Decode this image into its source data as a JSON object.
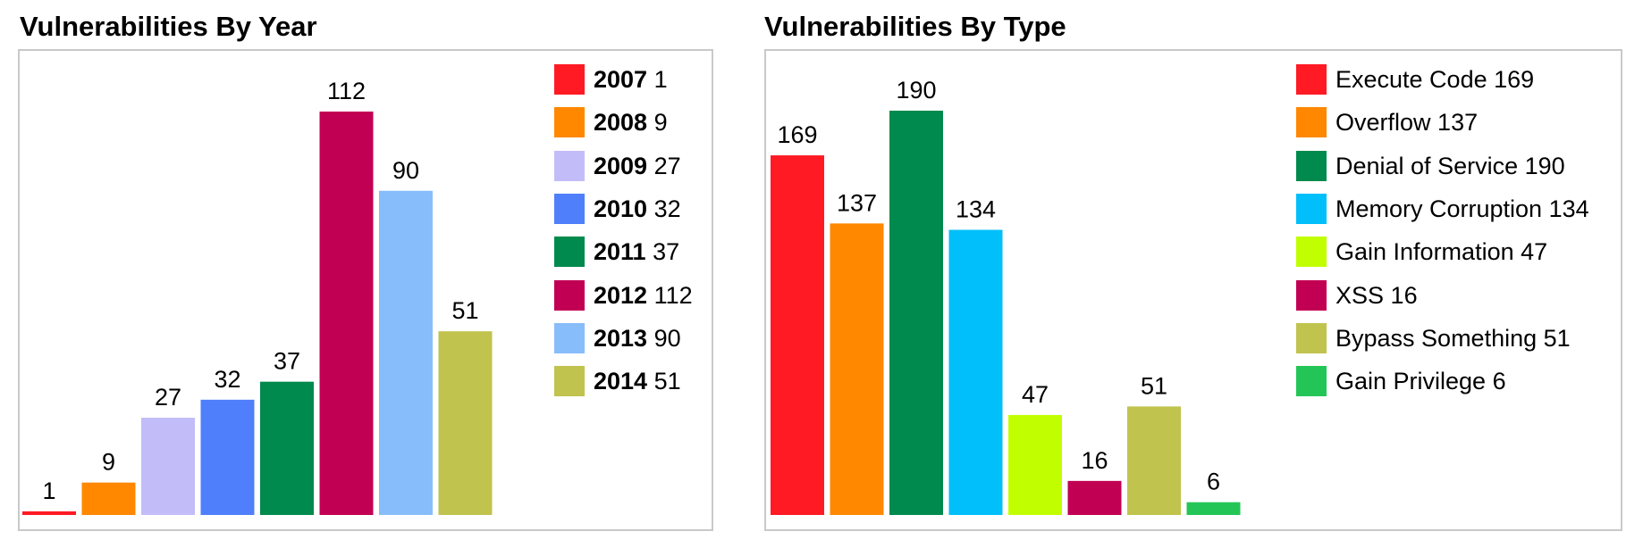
{
  "chart_data": [
    {
      "type": "bar",
      "title": "Vulnerabilities By Year",
      "xlabel": "",
      "ylabel": "",
      "categories": [
        "2007",
        "2008",
        "2009",
        "2010",
        "2011",
        "2012",
        "2013",
        "2014"
      ],
      "values": [
        1,
        9,
        27,
        32,
        37,
        112,
        90,
        51
      ],
      "colors": [
        "#ff1a24",
        "#ff8800",
        "#c2bdf9",
        "#4f7ffb",
        "#018a4d",
        "#c20053",
        "#88bdfb",
        "#c1c34f"
      ],
      "legend_position": "right",
      "legend_name_bold": true,
      "grid": false,
      "ylim": [
        0,
        112
      ]
    },
    {
      "type": "bar",
      "title": "Vulnerabilities By Type",
      "xlabel": "",
      "ylabel": "",
      "categories": [
        "Execute Code",
        "Overflow",
        "Denial of Service",
        "Memory Corruption",
        "Gain Information",
        "XSS",
        "Bypass Something",
        "Gain Privilege"
      ],
      "values": [
        169,
        137,
        190,
        134,
        47,
        16,
        51,
        6
      ],
      "colors": [
        "#ff1a24",
        "#ff8800",
        "#018a4d",
        "#01bffb",
        "#c1ff00",
        "#c20053",
        "#c1c34f",
        "#23c656"
      ],
      "legend_position": "right",
      "legend_name_bold": false,
      "grid": false,
      "ylim": [
        0,
        190
      ]
    }
  ]
}
